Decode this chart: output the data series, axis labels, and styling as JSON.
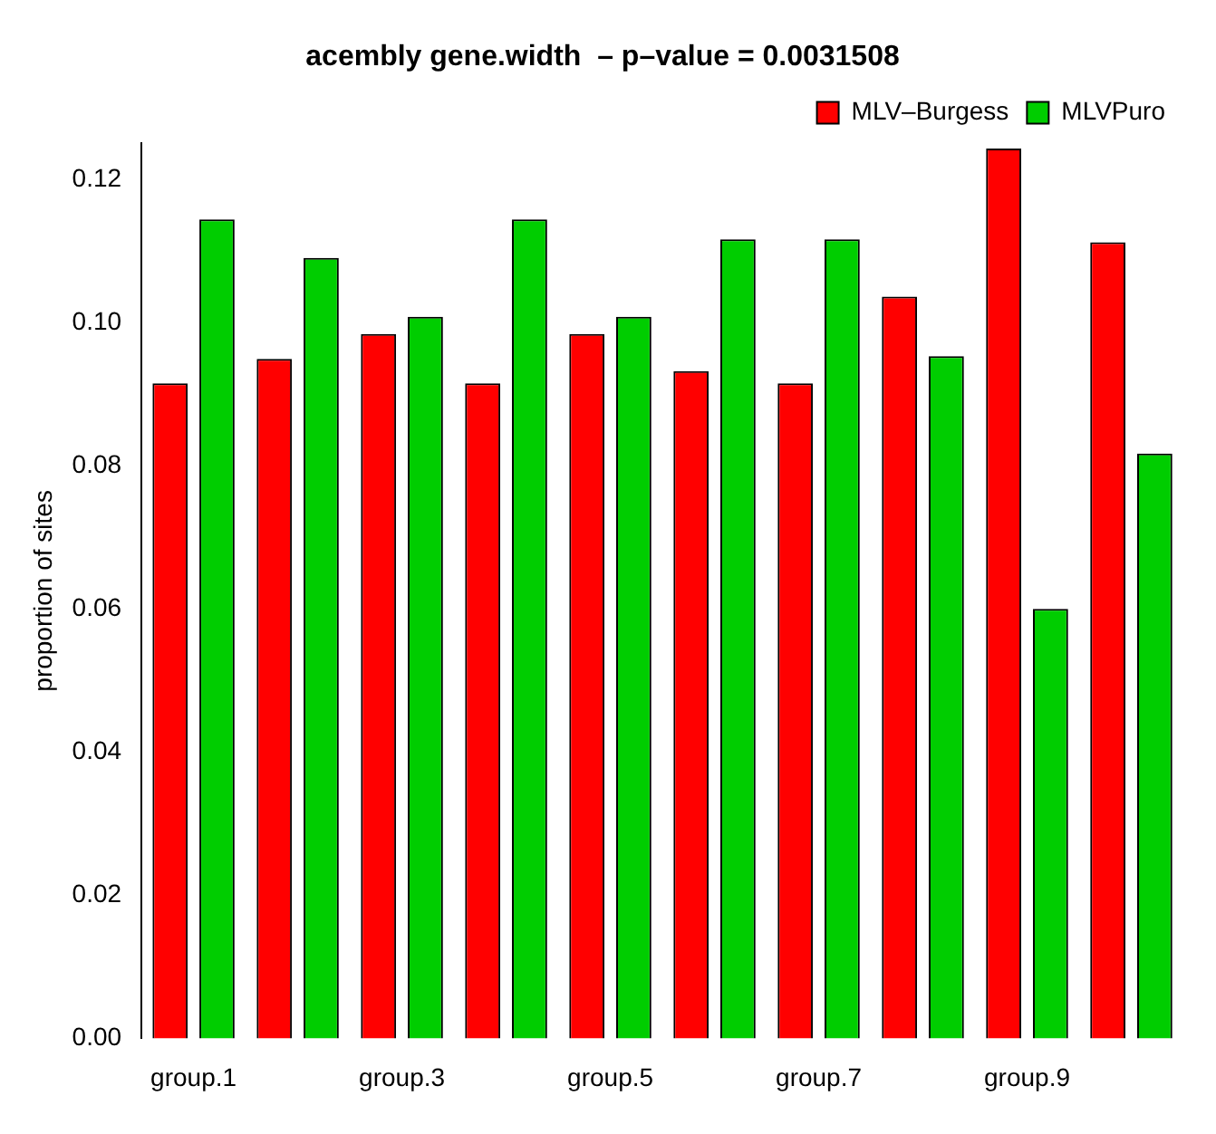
{
  "chart_data": {
    "type": "bar",
    "title": "acembly gene.width  – p–value = 0.0031508",
    "ylabel": "proportion of sites",
    "categories": [
      "group.1",
      null,
      "group.3",
      null,
      "group.5",
      null,
      "group.7",
      null,
      "group.9",
      null
    ],
    "series": [
      {
        "name": "MLV–Burgess",
        "color": "#ff0000",
        "values": [
          0.0915,
          0.0949,
          0.0984,
          0.0915,
          0.0984,
          0.0932,
          0.0915,
          0.1036,
          0.1243,
          0.1112
        ]
      },
      {
        "name": "MLVPuro",
        "color": "#00cd00",
        "values": [
          0.1144,
          0.109,
          0.1008,
          0.1144,
          0.1008,
          0.1116,
          0.1116,
          0.0953,
          0.06,
          0.0817
        ]
      }
    ],
    "ylim": [
      0,
      0.125
    ],
    "yticks": [
      {
        "value": 0,
        "label": "0.00"
      },
      0.02,
      0.04,
      0.06,
      0.08,
      {
        "value": 0.1,
        "label": "0.10"
      },
      0.12
    ],
    "grid": false,
    "legend": "top right"
  }
}
